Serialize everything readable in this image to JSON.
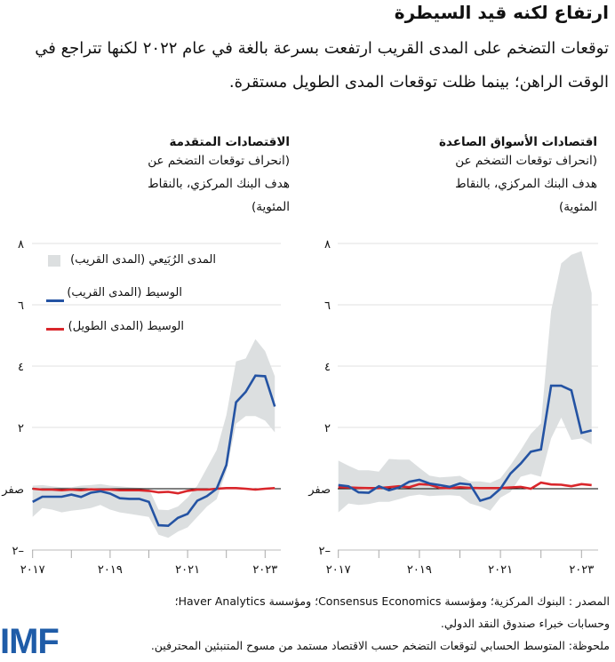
{
  "header": {
    "title": "ارتفاع لكنه قيد السيطرة",
    "subtitle": "توقعات التضخم على المدى القريب ارتفعت بسرعة بالغة في عام ٢٠٢٢ لكنها تتراجع في الوقت الراهن؛ بينما ظلت توقعات المدى الطويل مستقرة."
  },
  "legend": {
    "band": "المدى الرُبَيعي (المدى القريب)",
    "near": "الوسيط (المدى القريب)",
    "long": "الوسيط (المدى الطويل)"
  },
  "colors": {
    "near": "#2453a3",
    "long": "#d9262b",
    "band": "#dcdfe0"
  },
  "footer": {
    "source": "المصدر : البنوك المركزية؛ ومؤسسة Consensus Economics؛ ومؤسسة Haver Analytics؛",
    "source2": "وحسابات خبراء صندوق النقد الدولي.",
    "note": "ملحوظة: المتوسط الحسابي لتوقعات التضخم حسب الاقتصاد مستمد من مسوح المتنبئين المحترفين.",
    "logo": "IMF"
  },
  "chart_data": [
    {
      "type": "line",
      "title": "الاقتصادات المتقدمة",
      "subtitle": "(انحراف توقعات التضخم عن هدف البنك المركزي، بالنقاط المئوية)",
      "x_start": "2017Q1",
      "x_freq": "quarterly",
      "x_ticks": [
        "٢٠١٧",
        "٢٠١٩",
        "٢٠٢١",
        "٢٠٢٣"
      ],
      "y_ticks": [
        "٨",
        "٦",
        "٤",
        "٢",
        "صفر",
        "٢–"
      ],
      "ylim": [
        -2,
        8
      ],
      "grid": true,
      "legend_placement": "top-left",
      "series": [
        {
          "name": "الوسيط (المدى القريب)",
          "values": [
            -0.43,
            -0.26,
            -0.26,
            -0.26,
            -0.19,
            -0.27,
            -0.13,
            -0.08,
            -0.16,
            -0.31,
            -0.33,
            -0.33,
            -0.43,
            -1.19,
            -1.21,
            -0.95,
            -0.82,
            -0.39,
            -0.24,
            0.0,
            0.77,
            2.82,
            3.16,
            3.69,
            3.67,
            2.68
          ]
        },
        {
          "name": "الوسيط (المدى الطويل)",
          "values": [
            0.0,
            -0.03,
            -0.03,
            -0.05,
            -0.03,
            -0.05,
            -0.02,
            -0.03,
            -0.03,
            -0.05,
            -0.05,
            -0.05,
            -0.07,
            -0.12,
            -0.1,
            -0.15,
            -0.07,
            -0.03,
            -0.03,
            0.0,
            0.02,
            0.02,
            0.0,
            -0.03,
            0.0,
            0.02
          ]
        },
        {
          "name": "المدى الرُبَيعي (المدى القريب)",
          "upper": [
            0.1,
            0.12,
            0.08,
            0.05,
            0.05,
            0.1,
            0.12,
            0.15,
            0.1,
            0.08,
            0.05,
            0.03,
            0.0,
            -0.68,
            -0.7,
            -0.58,
            -0.29,
            0.1,
            0.68,
            1.26,
            2.4,
            4.15,
            4.25,
            4.88,
            4.49,
            3.67
          ],
          "lower": [
            -0.92,
            -0.63,
            -0.68,
            -0.77,
            -0.72,
            -0.68,
            -0.63,
            -0.53,
            -0.68,
            -0.77,
            -0.82,
            -0.87,
            -0.92,
            -1.5,
            -1.6,
            -1.4,
            -1.26,
            -0.92,
            -0.58,
            -0.34,
            0.58,
            2.12,
            2.37,
            2.37,
            2.22,
            1.84
          ]
        }
      ]
    },
    {
      "type": "line",
      "title": "اقتصادات الأسواق الصاعدة",
      "subtitle": "(انحراف توقعات التضخم عن هدف البنك المركزي، بالنقاط المئوية)",
      "x_start": "2017Q1",
      "x_freq": "quarterly",
      "x_ticks": [
        "٢٠١٧",
        "٢٠١٩",
        "٢٠٢١",
        "٢٠٢٣"
      ],
      "y_ticks": [
        "٨",
        "٦",
        "٤",
        "٢",
        "صفر",
        "٢–"
      ],
      "ylim": [
        -2,
        8
      ],
      "grid": true,
      "series": [
        {
          "name": "الوسيط (المدى القريب)",
          "values": [
            0.12,
            0.08,
            -0.12,
            -0.13,
            0.08,
            -0.05,
            0.04,
            0.23,
            0.29,
            0.17,
            0.12,
            0.06,
            0.17,
            0.14,
            -0.39,
            -0.29,
            0.0,
            0.5,
            0.82,
            1.21,
            1.28,
            3.36,
            3.36,
            3.21,
            1.82,
            1.9
          ]
        },
        {
          "name": "الوسيط (المدى الطويل)",
          "values": [
            0.05,
            0.04,
            0.03,
            0.02,
            0.02,
            0.05,
            0.08,
            0.05,
            0.15,
            0.13,
            0.03,
            0.02,
            0.05,
            0.03,
            0.02,
            0.02,
            0.02,
            0.04,
            0.06,
            0.0,
            0.2,
            0.14,
            0.13,
            0.08,
            0.15,
            0.12
          ]
        },
        {
          "name": "المدى الرُبَيعي (المدى القريب)",
          "upper": [
            0.92,
            0.75,
            0.6,
            0.6,
            0.56,
            0.97,
            0.95,
            0.95,
            0.68,
            0.43,
            0.37,
            0.39,
            0.42,
            0.24,
            0.24,
            0.19,
            0.34,
            0.77,
            1.26,
            1.79,
            2.13,
            5.8,
            7.35,
            7.63,
            7.75,
            6.38
          ],
          "lower": [
            -0.77,
            -0.48,
            -0.53,
            -0.5,
            -0.43,
            -0.43,
            -0.34,
            -0.24,
            -0.19,
            -0.24,
            -0.22,
            -0.21,
            -0.24,
            -0.48,
            -0.58,
            -0.72,
            -0.29,
            -0.1,
            0.39,
            0.48,
            0.39,
            1.64,
            2.32,
            1.59,
            1.64,
            1.45
          ]
        }
      ]
    }
  ]
}
